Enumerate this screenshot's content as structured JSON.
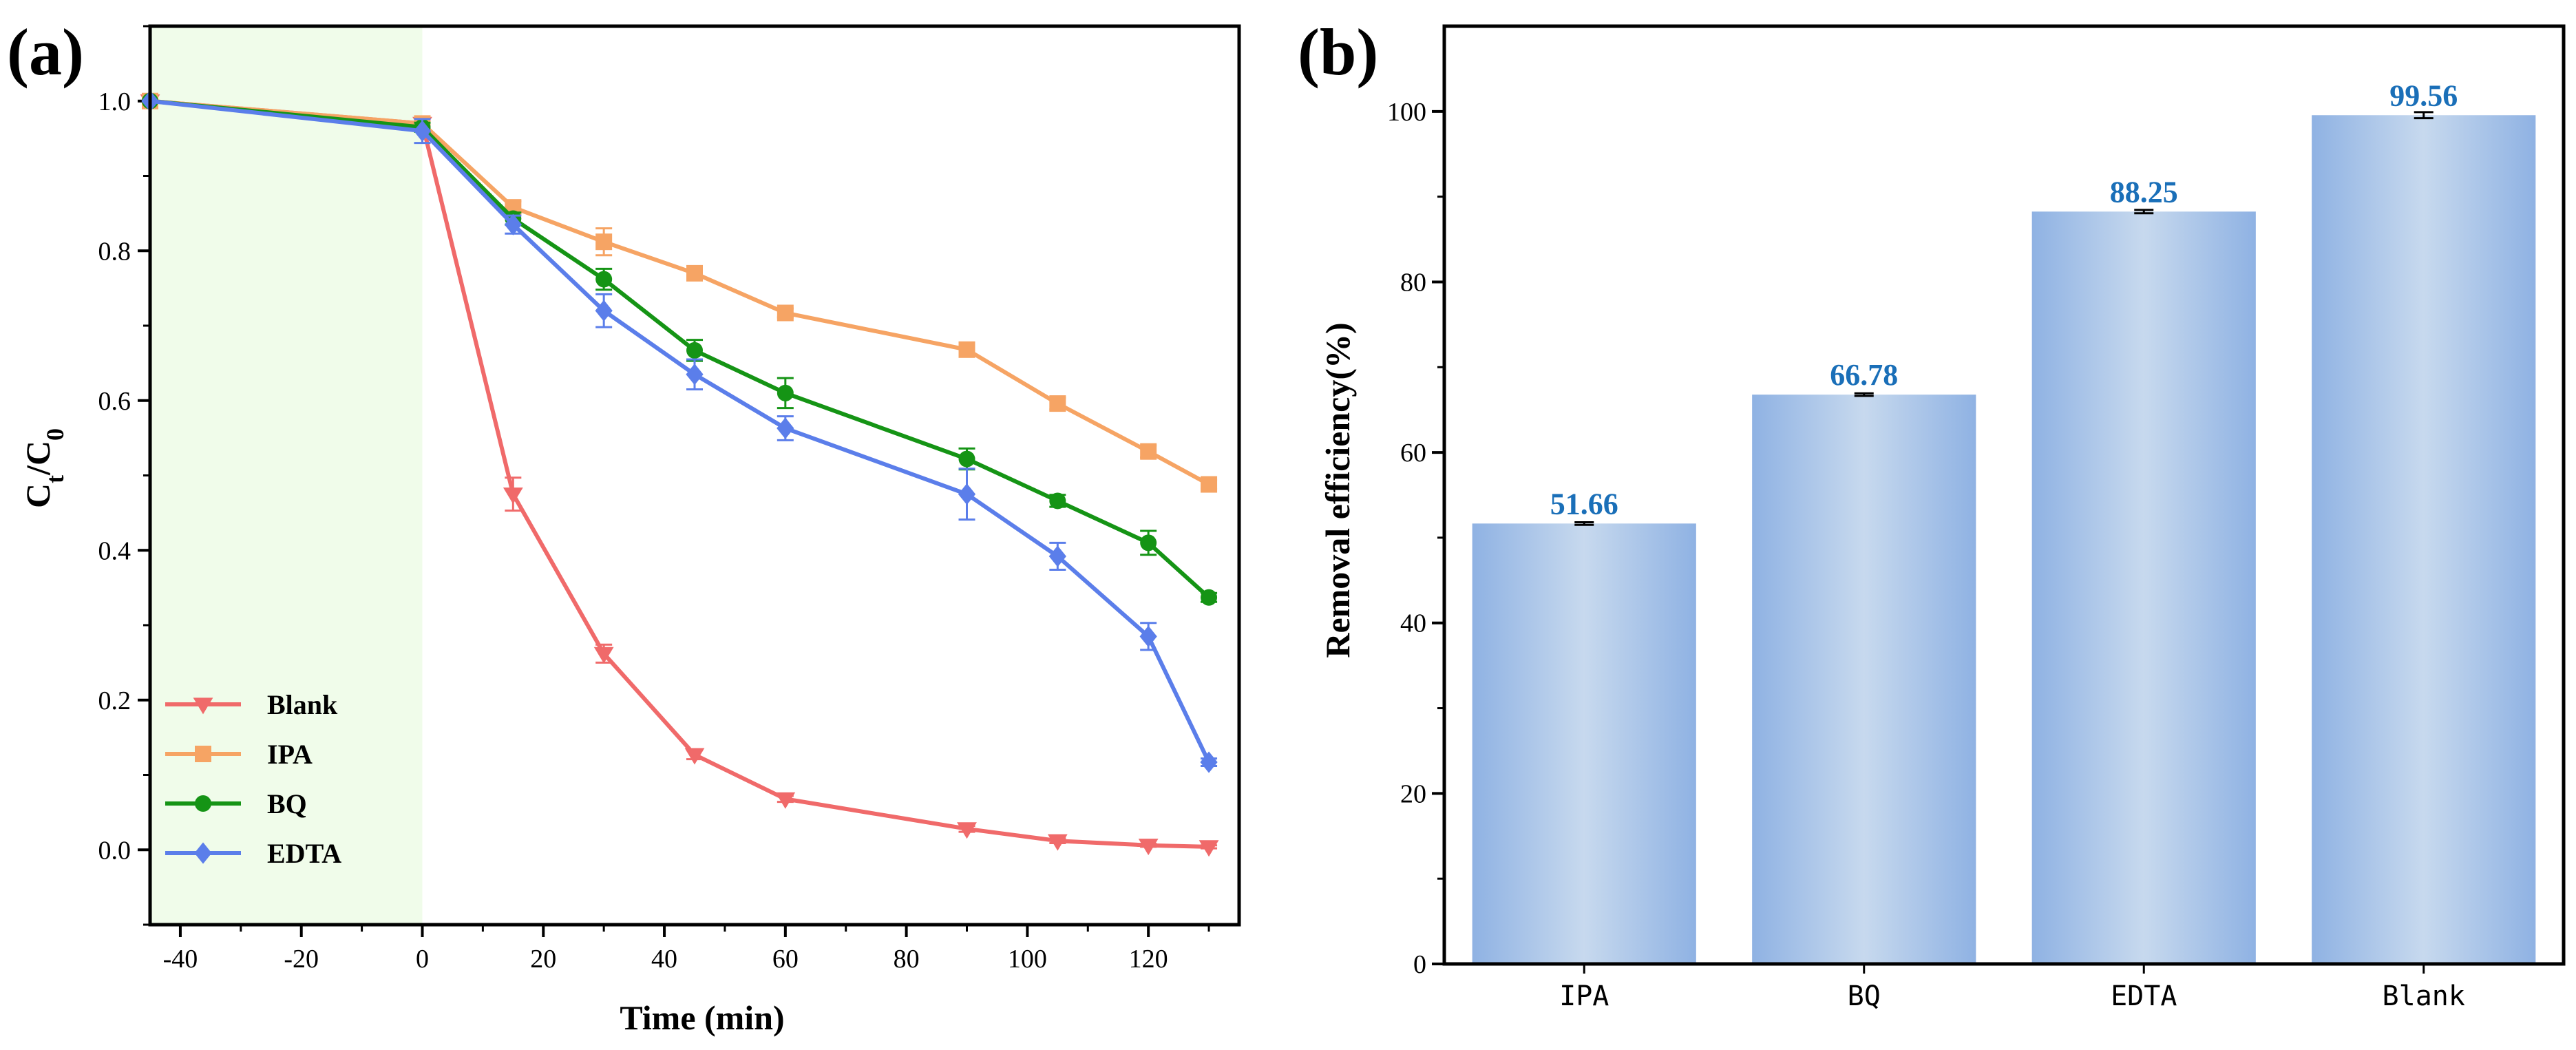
{
  "chart_data": [
    {
      "panel_label": "(a)",
      "type": "line",
      "xlabel": "Time (min)",
      "ylabel": {
        "main": "C",
        "sub1": "t",
        "sep": "/C",
        "sub2": "0"
      },
      "xlim": [
        -45,
        135
      ],
      "ylim": [
        -0.1,
        1.1
      ],
      "xticks": [
        -40,
        -20,
        0,
        20,
        40,
        60,
        80,
        100,
        120
      ],
      "xtick_labels": [
        "-40",
        "-20",
        "0",
        "20",
        "40",
        "60",
        "80",
        "100",
        "120"
      ],
      "yticks": [
        0.0,
        0.2,
        0.4,
        0.6,
        0.8,
        1.0
      ],
      "ytick_labels": [
        "0.0",
        "0.2",
        "0.4",
        "0.6",
        "0.8",
        "1.0"
      ],
      "dark_region": [
        -45,
        0
      ],
      "legend_position": "bottom-left",
      "series": [
        {
          "name": "Blank",
          "color": "#f06a6a",
          "marker": "triangle-down",
          "x": [
            -45,
            0,
            15,
            30,
            45,
            60,
            90,
            105,
            120,
            130
          ],
          "y": [
            1.0,
            0.97,
            0.475,
            0.262,
            0.127,
            0.068,
            0.028,
            0.012,
            0.006,
            0.004
          ],
          "err": [
            0.0,
            0.006,
            0.022,
            0.012,
            0.006,
            0.004,
            0.004,
            0.003,
            0.002,
            0.002
          ]
        },
        {
          "name": "IPA",
          "color": "#f6a464",
          "marker": "square",
          "x": [
            -45,
            0,
            15,
            30,
            45,
            60,
            90,
            105,
            120,
            130
          ],
          "y": [
            1.0,
            0.97,
            0.858,
            0.812,
            0.77,
            0.717,
            0.668,
            0.596,
            0.532,
            0.488
          ],
          "err": [
            0.0,
            0.005,
            0.008,
            0.018,
            0.008,
            0.006,
            0.006,
            0.008,
            0.008,
            0.006
          ]
        },
        {
          "name": "BQ",
          "color": "#159415",
          "marker": "circle",
          "x": [
            -45,
            0,
            15,
            30,
            45,
            60,
            90,
            105,
            120,
            130
          ],
          "y": [
            1.0,
            0.965,
            0.843,
            0.762,
            0.667,
            0.61,
            0.522,
            0.466,
            0.41,
            0.337
          ],
          "err": [
            0.0,
            0.006,
            0.008,
            0.014,
            0.014,
            0.02,
            0.014,
            0.008,
            0.016,
            0.006
          ]
        },
        {
          "name": "EDTA",
          "color": "#5b7eea",
          "marker": "diamond",
          "x": [
            -45,
            0,
            15,
            30,
            45,
            60,
            90,
            105,
            120,
            130
          ],
          "y": [
            1.0,
            0.96,
            0.835,
            0.72,
            0.635,
            0.563,
            0.475,
            0.392,
            0.285,
            0.117
          ],
          "err": [
            0.0,
            0.016,
            0.012,
            0.022,
            0.02,
            0.016,
            0.034,
            0.018,
            0.018,
            0.005
          ]
        }
      ]
    },
    {
      "panel_label": "(b)",
      "type": "bar",
      "xlabel": "",
      "ylabel": "Removal efficiency(%)",
      "ylim": [
        0,
        110
      ],
      "yticks": [
        0,
        20,
        40,
        60,
        80,
        100
      ],
      "ytick_labels": [
        "0",
        "20",
        "40",
        "60",
        "80",
        "100"
      ],
      "categories": [
        "IPA",
        "BQ",
        "EDTA",
        "Blank"
      ],
      "values": [
        51.66,
        66.78,
        88.25,
        99.56
      ],
      "value_labels": [
        "51.66",
        "66.78",
        "88.25",
        "99.56"
      ],
      "err": [
        0.15,
        0.15,
        0.2,
        0.35
      ],
      "bar_color_edge": "#8fb2e3",
      "bar_color_center": "#c7d9ee",
      "value_label_color": "#1a6fb8"
    }
  ]
}
